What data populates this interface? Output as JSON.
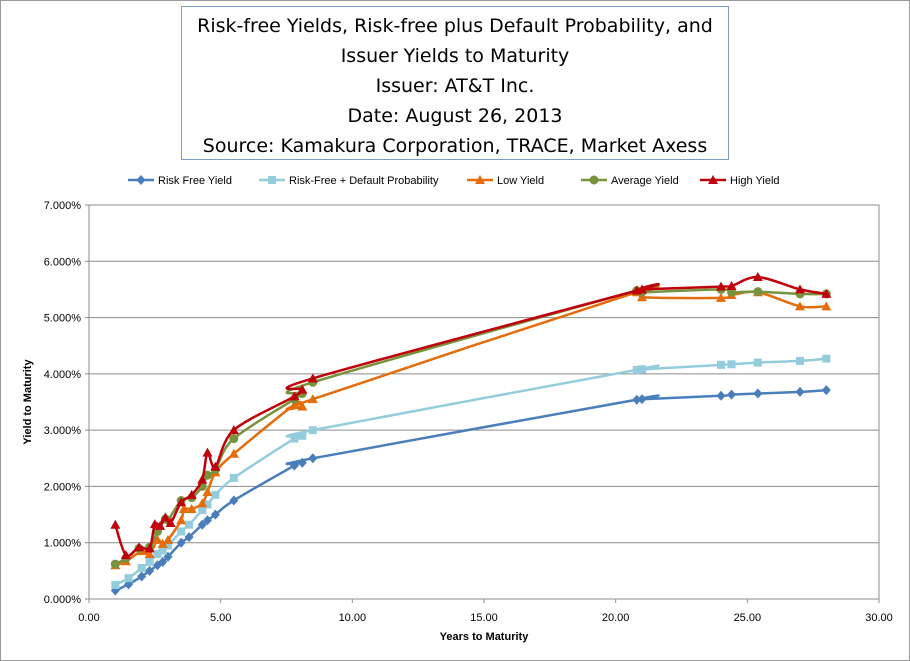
{
  "chart_data": {
    "type": "line",
    "title_lines": [
      "Risk-free Yields, Risk-free plus Default Probability, and",
      "Issuer Yields to Maturity",
      "Issuer: AT&T Inc.",
      "Date: August 26, 2013",
      "Source: Kamakura Corporation, TRACE, Market Axess"
    ],
    "xlabel": "Years to Maturity",
    "ylabel": "Yield to Maturity",
    "xlim": [
      0,
      30
    ],
    "ylim": [
      0,
      7
    ],
    "x_ticks": [
      "0.00",
      "5.00",
      "10.00",
      "15.00",
      "20.00",
      "25.00",
      "30.00"
    ],
    "y_ticks": [
      "0.000%",
      "1.000%",
      "2.000%",
      "3.000%",
      "4.000%",
      "5.000%",
      "6.000%",
      "7.000%"
    ],
    "grid": "horizontal",
    "legend_position": "top",
    "series": [
      {
        "name": "Risk Free Yield",
        "color": "#4a7ebb",
        "marker": "diamond",
        "points": [
          [
            1.0,
            0.15
          ],
          [
            1.5,
            0.26
          ],
          [
            2.0,
            0.4
          ],
          [
            2.3,
            0.5
          ],
          [
            2.6,
            0.6
          ],
          [
            2.8,
            0.66
          ],
          [
            3.0,
            0.75
          ],
          [
            3.5,
            1.0
          ],
          [
            3.8,
            1.1
          ],
          [
            4.3,
            1.32
          ],
          [
            4.5,
            1.4
          ],
          [
            4.8,
            1.5
          ],
          [
            5.5,
            1.75
          ],
          [
            7.8,
            2.37
          ],
          [
            8.1,
            2.42
          ],
          [
            8.5,
            2.5
          ],
          [
            20.8,
            3.54
          ],
          [
            21.0,
            3.55
          ],
          [
            24.0,
            3.61
          ],
          [
            24.4,
            3.63
          ],
          [
            25.4,
            3.65
          ],
          [
            27.0,
            3.68
          ],
          [
            28.0,
            3.71
          ]
        ]
      },
      {
        "name": "Risk-Free + Default Probability",
        "color": "#93cddd",
        "marker": "square",
        "points": [
          [
            1.0,
            0.25
          ],
          [
            1.5,
            0.37
          ],
          [
            2.0,
            0.55
          ],
          [
            2.3,
            0.66
          ],
          [
            2.6,
            0.8
          ],
          [
            2.8,
            0.86
          ],
          [
            3.0,
            0.95
          ],
          [
            3.5,
            1.2
          ],
          [
            3.8,
            1.32
          ],
          [
            4.3,
            1.58
          ],
          [
            4.5,
            1.68
          ],
          [
            4.8,
            1.85
          ],
          [
            5.5,
            2.15
          ],
          [
            7.8,
            2.85
          ],
          [
            8.1,
            2.9
          ],
          [
            8.5,
            3.0
          ],
          [
            20.8,
            4.07
          ],
          [
            21.0,
            4.08
          ],
          [
            24.0,
            4.16
          ],
          [
            24.4,
            4.17
          ],
          [
            25.4,
            4.2
          ],
          [
            27.0,
            4.23
          ],
          [
            28.0,
            4.27
          ]
        ]
      },
      {
        "name": "Low Yield",
        "color": "#e46c0a",
        "marker": "triangle",
        "points": [
          [
            1.0,
            0.6
          ],
          [
            1.4,
            0.67
          ],
          [
            2.0,
            0.85
          ],
          [
            2.3,
            0.8
          ],
          [
            2.6,
            1.05
          ],
          [
            2.8,
            0.98
          ],
          [
            3.0,
            1.05
          ],
          [
            3.5,
            1.4
          ],
          [
            3.6,
            1.6
          ],
          [
            3.9,
            1.6
          ],
          [
            4.3,
            1.7
          ],
          [
            4.5,
            1.9
          ],
          [
            4.8,
            2.25
          ],
          [
            5.5,
            2.58
          ],
          [
            7.8,
            3.45
          ],
          [
            8.1,
            3.42
          ],
          [
            8.5,
            3.55
          ],
          [
            20.8,
            5.45
          ],
          [
            21.0,
            5.36
          ],
          [
            24.0,
            5.35
          ],
          [
            24.4,
            5.4
          ],
          [
            25.4,
            5.45
          ],
          [
            27.0,
            5.2
          ],
          [
            28.0,
            5.2
          ]
        ]
      },
      {
        "name": "Average Yield",
        "color": "#77933c",
        "marker": "circle",
        "points": [
          [
            1.0,
            0.62
          ],
          [
            1.4,
            0.72
          ],
          [
            1.9,
            0.9
          ],
          [
            2.3,
            0.92
          ],
          [
            2.6,
            1.2
          ],
          [
            2.9,
            1.42
          ],
          [
            3.0,
            1.4
          ],
          [
            3.5,
            1.75
          ],
          [
            3.9,
            1.8
          ],
          [
            4.3,
            2.0
          ],
          [
            4.5,
            2.2
          ],
          [
            4.8,
            2.3
          ],
          [
            5.5,
            2.85
          ],
          [
            7.8,
            3.55
          ],
          [
            8.1,
            3.65
          ],
          [
            8.5,
            3.85
          ],
          [
            20.8,
            5.48
          ],
          [
            21.0,
            5.45
          ],
          [
            24.0,
            5.5
          ],
          [
            24.4,
            5.45
          ],
          [
            25.4,
            5.46
          ],
          [
            27.0,
            5.42
          ],
          [
            28.0,
            5.42
          ]
        ]
      },
      {
        "name": "High Yield",
        "color": "#c0000b",
        "marker": "triangle",
        "points": [
          [
            1.0,
            1.32
          ],
          [
            1.4,
            0.78
          ],
          [
            1.9,
            0.92
          ],
          [
            2.3,
            0.9
          ],
          [
            2.5,
            1.33
          ],
          [
            2.7,
            1.3
          ],
          [
            2.9,
            1.45
          ],
          [
            3.1,
            1.35
          ],
          [
            3.5,
            1.72
          ],
          [
            3.9,
            1.85
          ],
          [
            4.3,
            2.12
          ],
          [
            4.5,
            2.6
          ],
          [
            4.8,
            2.35
          ],
          [
            5.5,
            3.0
          ],
          [
            7.8,
            3.6
          ],
          [
            8.1,
            3.72
          ],
          [
            8.5,
            3.92
          ],
          [
            20.8,
            5.48
          ],
          [
            21.0,
            5.5
          ],
          [
            24.0,
            5.55
          ],
          [
            24.4,
            5.56
          ],
          [
            25.4,
            5.72
          ],
          [
            27.0,
            5.5
          ],
          [
            28.0,
            5.42
          ]
        ]
      }
    ]
  }
}
